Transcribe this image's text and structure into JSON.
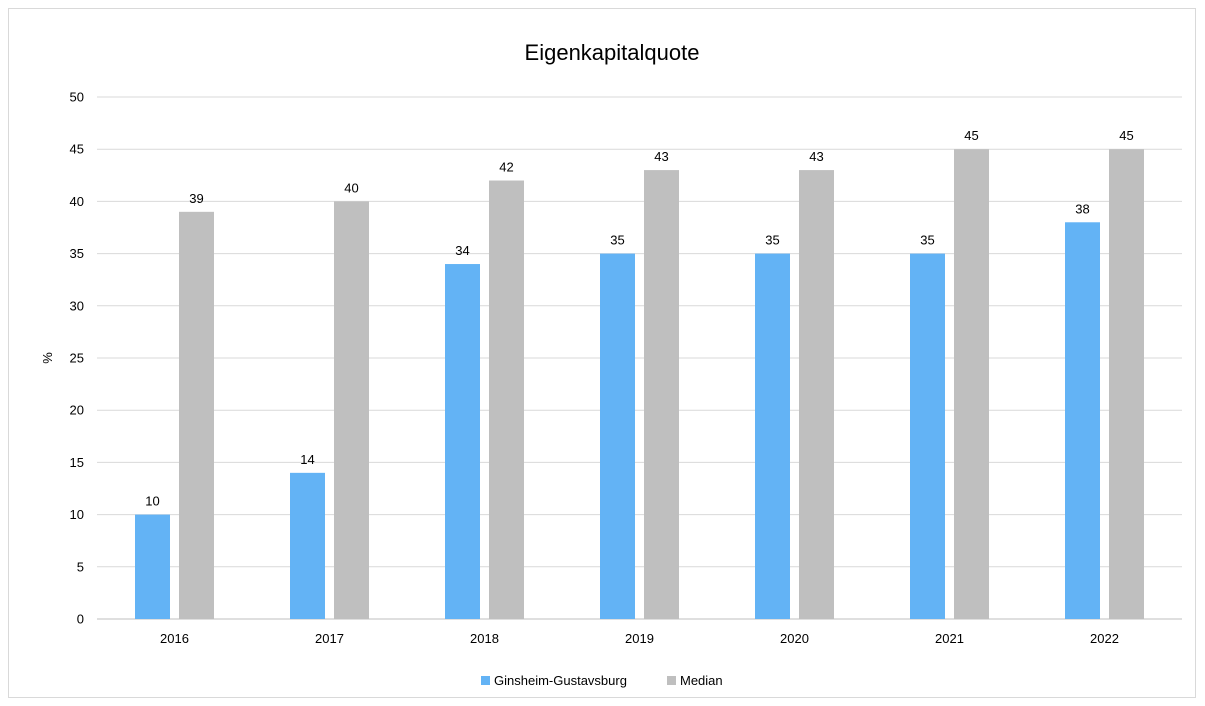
{
  "chart_data": {
    "type": "bar",
    "title": "Eigenkapitalquote",
    "xlabel": "",
    "ylabel": "%",
    "categories": [
      "2016",
      "2017",
      "2018",
      "2019",
      "2020",
      "2021",
      "2022"
    ],
    "series": [
      {
        "name": "Ginsheim-Gustavsburg",
        "values": [
          10,
          14,
          34,
          35,
          35,
          35,
          38
        ],
        "color": "#63b3f5"
      },
      {
        "name": "Median",
        "values": [
          39,
          40,
          42,
          43,
          43,
          45,
          45
        ],
        "color": "#bfbfbf"
      }
    ],
    "ylim": [
      0,
      50
    ],
    "yticks": [
      0,
      5,
      10,
      15,
      20,
      25,
      30,
      35,
      40,
      45,
      50
    ],
    "grid": true,
    "data_labels": true,
    "legend_position": "bottom"
  }
}
